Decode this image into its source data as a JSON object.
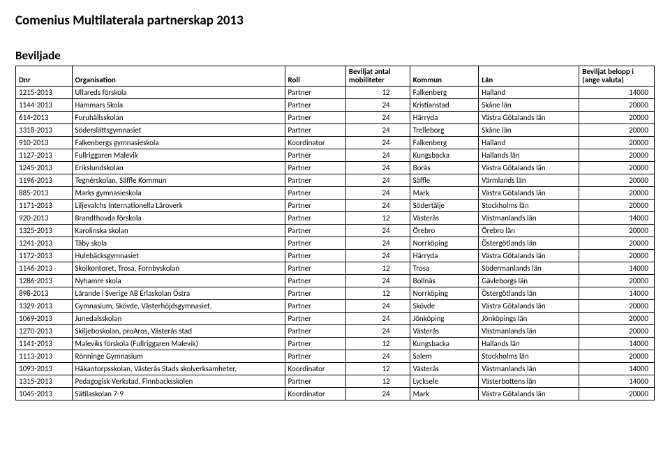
{
  "page_title": "Comenius Multilaterala partnerskap 2013",
  "section_title": "Beviljade",
  "columns": {
    "dnr": "Dnr",
    "org": "Organisation",
    "roll": "Roll",
    "mob": "Beviljat antal mobiliteter",
    "kom": "Kommun",
    "lan": "Län",
    "bel": "Beviljat belopp i (ange valuta)"
  },
  "rows": [
    {
      "dnr": "1215-2013",
      "org": "Ullareds förskola",
      "roll": "Partner",
      "mob": "12",
      "kom": "Falkenberg",
      "lan": "Halland",
      "bel": "14000"
    },
    {
      "dnr": "1144-2013",
      "org": "Hammars Skola",
      "roll": "Partner",
      "mob": "24",
      "kom": "Kristianstad",
      "lan": "Skåne län",
      "bel": "20000"
    },
    {
      "dnr": "614-2013",
      "org": "Furuhällsskolan",
      "roll": "Partner",
      "mob": "24",
      "kom": "Härryda",
      "lan": "Västra Götalands län",
      "bel": "20000"
    },
    {
      "dnr": "1318-2013",
      "org": "Söderslättsgymnasiet",
      "roll": "Partner",
      "mob": "24",
      "kom": "Trelleborg",
      "lan": "Skåne län",
      "bel": "20000"
    },
    {
      "dnr": "910-2013",
      "org": "Falkenbergs gymnasieskola",
      "roll": "Koordinator",
      "mob": "24",
      "kom": "Falkenberg",
      "lan": "Halland",
      "bel": "20000"
    },
    {
      "dnr": "1127-2013",
      "org": "Fullriggaren Malevik",
      "roll": "Partner",
      "mob": "24",
      "kom": "Kungsbacka",
      "lan": "Hallands län",
      "bel": "20000"
    },
    {
      "dnr": "1245-2013",
      "org": "Erikslundskolan",
      "roll": "Partner",
      "mob": "24",
      "kom": "Borås",
      "lan": "Västra Götalands län",
      "bel": "20000"
    },
    {
      "dnr": "1196-2013",
      "org": "Tegnérskolan, Säffle Kommun",
      "roll": "Partner",
      "mob": "24",
      "kom": "Säffle",
      "lan": "Värmlands län",
      "bel": "20000"
    },
    {
      "dnr": "885-2013",
      "org": "Marks gymnasieskola",
      "roll": "Partner",
      "mob": "24",
      "kom": "Mark",
      "lan": "Västra Götalands län",
      "bel": "20000"
    },
    {
      "dnr": "1171-2013",
      "org": "Liljevalchs Internationella Läroverk",
      "roll": "Partner",
      "mob": "24",
      "kom": "Södertälje",
      "lan": "Stockholms län",
      "bel": "20000"
    },
    {
      "dnr": "920-2013",
      "org": "Brandthovda förskola",
      "roll": "Partner",
      "mob": "12",
      "kom": "Västerås",
      "lan": "Västmanlands län",
      "bel": "14000"
    },
    {
      "dnr": "1325-2013",
      "org": "Karolinska skolan",
      "roll": "Partner",
      "mob": "24",
      "kom": "Örebro",
      "lan": "Örebro län",
      "bel": "20000"
    },
    {
      "dnr": "1241-2013",
      "org": "Tåby skola",
      "roll": "Partner",
      "mob": "24",
      "kom": "Norrköping",
      "lan": "Östergötlands län",
      "bel": "20000"
    },
    {
      "dnr": "1172-2013",
      "org": "Hulebäcksgymnasiet",
      "roll": "Partner",
      "mob": "24",
      "kom": "Härryda",
      "lan": "Västra Götalands län",
      "bel": "20000"
    },
    {
      "dnr": "1146-2013",
      "org": "Skolkontoret, Trosa, Fornbyskolan",
      "roll": "Partner",
      "mob": "12",
      "kom": "Trosa",
      "lan": "Södermanlands län",
      "bel": "14000"
    },
    {
      "dnr": "1286-2013",
      "org": "Nyhamre skola",
      "roll": "Partner",
      "mob": "24",
      "kom": "Bollnäs",
      "lan": "Gävleborgs län",
      "bel": "20000"
    },
    {
      "dnr": "898-2013",
      "org": "Lärande i Sverige AB Erlaskolan Östra",
      "roll": "Partner",
      "mob": "12",
      "kom": "Norrköping",
      "lan": "Östergötlands län",
      "bel": "14000"
    },
    {
      "dnr": "1329-2013",
      "org": "Gymnasium, Skövde, Västerhöjdsgymnasiet,",
      "roll": "Partner",
      "mob": "24",
      "kom": "Skövde",
      "lan": "Västra Götalands län",
      "bel": "20000"
    },
    {
      "dnr": "1069-2013",
      "org": "Junedalsskolan",
      "roll": "Partner",
      "mob": "24",
      "kom": "Jönköping",
      "lan": "Jönköpings län",
      "bel": "20000"
    },
    {
      "dnr": "1270-2013",
      "org": "Skiljeboskolan, proAros, Västerås stad",
      "roll": "Partner",
      "mob": "24",
      "kom": "Västerås",
      "lan": "Västmanlands län",
      "bel": "20000"
    },
    {
      "dnr": "1141-2013",
      "org": "Maleviks förskola (Fullriggaren Malevik)",
      "roll": "Partner",
      "mob": "12",
      "kom": "Kungsbacka",
      "lan": "Hallands län",
      "bel": "14000"
    },
    {
      "dnr": "1113-2013",
      "org": "Rönninge Gymnasium",
      "roll": "Partner",
      "mob": "24",
      "kom": "Salem",
      "lan": "Stockholms län",
      "bel": "20000"
    },
    {
      "dnr": "1093-2013",
      "org": "Håkantorpsskolan, Västerås Stads skolverksamheter,",
      "roll": "Koordinator",
      "mob": "12",
      "kom": "Västerås",
      "lan": "Västmanlands län",
      "bel": "14000"
    },
    {
      "dnr": "1315-2013",
      "org": "Pedagogisk Verkstad, Finnbacksskolen",
      "roll": "Partner",
      "mob": "12",
      "kom": "Lycksele",
      "lan": "Västerbottens län",
      "bel": "14000"
    },
    {
      "dnr": "1045-2013",
      "org": "Sätilaskolan 7-9",
      "roll": "Koordinator",
      "mob": "24",
      "kom": "Mark",
      "lan": "Västra Götalands län",
      "bel": "20000"
    }
  ]
}
